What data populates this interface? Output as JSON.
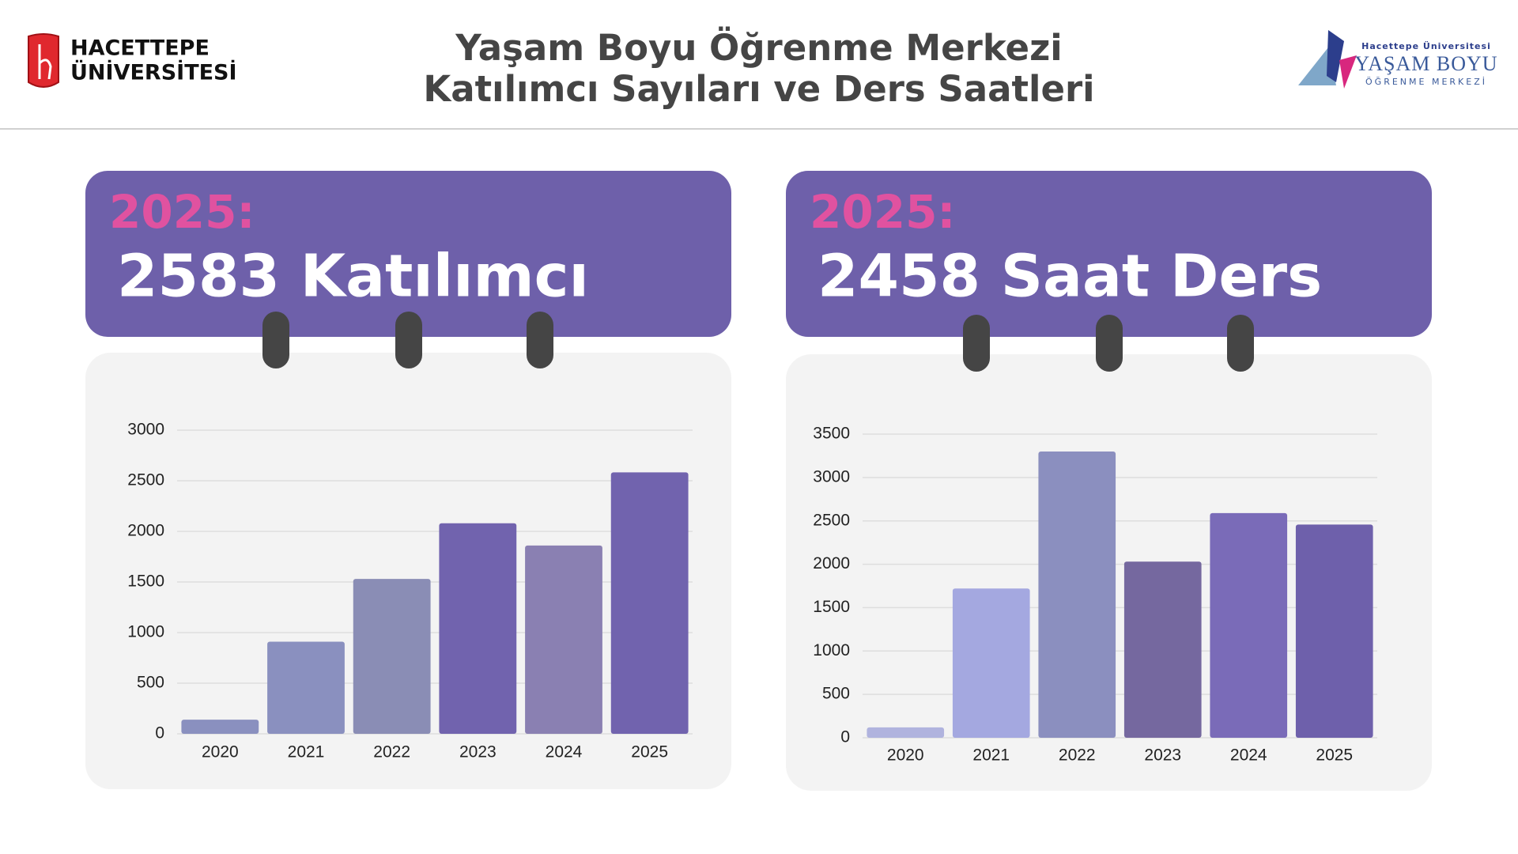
{
  "header": {
    "logo_left": [
      "HACETTEPE",
      "ÜNİVERSİTESİ"
    ],
    "title": [
      "Yaşam Boyu Öğrenme Merkezi",
      "Katılımcı Sayıları ve Ders Saatleri"
    ],
    "logo_right": [
      "Hacettepe Üniversitesi",
      "YAŞAM BOYU",
      "ÖĞRENME MERKEZİ"
    ]
  },
  "chart_data": [
    {
      "type": "bar",
      "highlight_year": "2025:",
      "highlight_text": "2583 Katılımcı",
      "categories": [
        "2020",
        "2021",
        "2022",
        "2023",
        "2024",
        "2025"
      ],
      "values": [
        140,
        910,
        1530,
        2080,
        1860,
        2583
      ],
      "colors": [
        "#8a90bf",
        "#8a90bf",
        "#8a8db5",
        "#7163ae",
        "#8a80b2",
        "#7163ae"
      ],
      "ylim": [
        0,
        3000
      ],
      "yticks": [
        0,
        500,
        1000,
        1500,
        2000,
        2500,
        3000
      ],
      "grid": true
    },
    {
      "type": "bar",
      "highlight_year": "2025:",
      "highlight_text": "2458 Saat Ders",
      "categories": [
        "2020",
        "2021",
        "2022",
        "2023",
        "2024",
        "2025"
      ],
      "values": [
        120,
        1720,
        3300,
        2030,
        2590,
        2458
      ],
      "colors": [
        "#b0b3de",
        "#a4a8e0",
        "#8b8fbf",
        "#75689f",
        "#7a6bb8",
        "#6e60ab"
      ],
      "ylim": [
        0,
        3500
      ],
      "yticks": [
        0,
        500,
        1000,
        1500,
        2000,
        2500,
        3000,
        3500
      ],
      "grid": true
    }
  ]
}
